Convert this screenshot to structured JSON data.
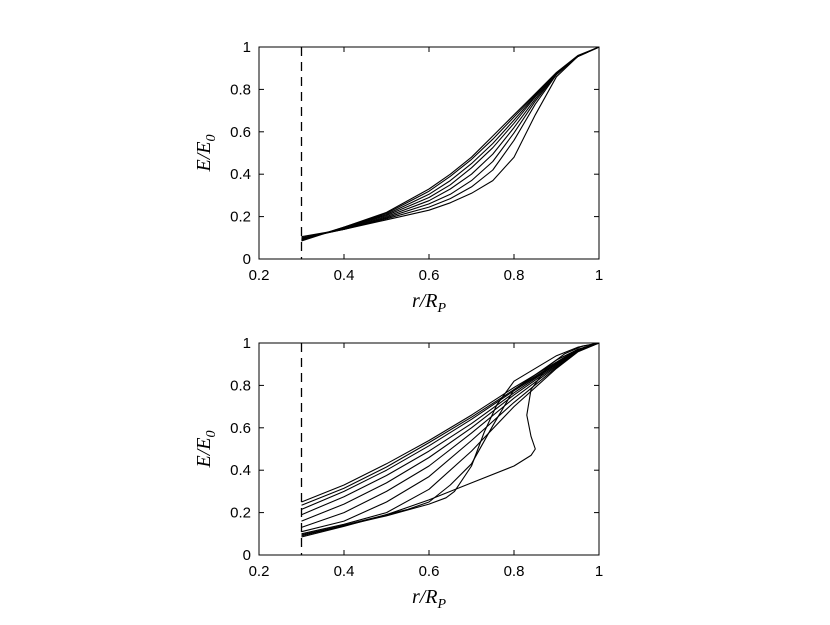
{
  "chart_data": [
    {
      "type": "line",
      "xlabel": {
        "main": "r/R",
        "sub": "P"
      },
      "ylabel": {
        "main": "E/E",
        "sub": "0"
      },
      "xlim": [
        0.2,
        1.0
      ],
      "ylim": [
        0,
        1
      ],
      "xticks": [
        "0.2",
        "0.4",
        "0.6",
        "0.8",
        "1"
      ],
      "yticks": [
        "0",
        "0.2",
        "0.4",
        "0.6",
        "0.8",
        "1"
      ],
      "reference_line": {
        "x": 0.3,
        "style": "dashed"
      },
      "grid": false,
      "line_color": "#000000",
      "series": [
        {
          "points": [
            [
              0.3,
              0.085
            ],
            [
              0.4,
              0.15
            ],
            [
              0.5,
              0.22
            ],
            [
              0.6,
              0.33
            ],
            [
              0.65,
              0.4
            ],
            [
              0.7,
              0.48
            ],
            [
              0.75,
              0.58
            ],
            [
              0.8,
              0.68
            ],
            [
              0.85,
              0.78
            ],
            [
              0.9,
              0.88
            ],
            [
              0.95,
              0.96
            ],
            [
              1.0,
              1.0
            ]
          ]
        },
        {
          "points": [
            [
              0.3,
              0.088
            ],
            [
              0.4,
              0.15
            ],
            [
              0.5,
              0.215
            ],
            [
              0.6,
              0.32
            ],
            [
              0.65,
              0.39
            ],
            [
              0.7,
              0.47
            ],
            [
              0.75,
              0.565
            ],
            [
              0.8,
              0.67
            ],
            [
              0.85,
              0.775
            ],
            [
              0.9,
              0.875
            ],
            [
              0.95,
              0.955
            ],
            [
              1.0,
              1.0
            ]
          ]
        },
        {
          "points": [
            [
              0.3,
              0.09
            ],
            [
              0.4,
              0.148
            ],
            [
              0.5,
              0.21
            ],
            [
              0.6,
              0.305
            ],
            [
              0.65,
              0.37
            ],
            [
              0.7,
              0.45
            ],
            [
              0.75,
              0.545
            ],
            [
              0.8,
              0.655
            ],
            [
              0.85,
              0.77
            ],
            [
              0.9,
              0.875
            ],
            [
              0.95,
              0.955
            ],
            [
              1.0,
              1.0
            ]
          ]
        },
        {
          "points": [
            [
              0.3,
              0.092
            ],
            [
              0.4,
              0.145
            ],
            [
              0.5,
              0.205
            ],
            [
              0.6,
              0.29
            ],
            [
              0.65,
              0.35
            ],
            [
              0.7,
              0.43
            ],
            [
              0.75,
              0.525
            ],
            [
              0.8,
              0.64
            ],
            [
              0.85,
              0.765
            ],
            [
              0.9,
              0.875
            ],
            [
              0.95,
              0.955
            ],
            [
              1.0,
              1.0
            ]
          ]
        },
        {
          "points": [
            [
              0.3,
              0.095
            ],
            [
              0.4,
              0.142
            ],
            [
              0.5,
              0.2
            ],
            [
              0.6,
              0.275
            ],
            [
              0.65,
              0.33
            ],
            [
              0.7,
              0.4
            ],
            [
              0.75,
              0.495
            ],
            [
              0.8,
              0.62
            ],
            [
              0.85,
              0.755
            ],
            [
              0.9,
              0.875
            ],
            [
              0.95,
              0.955
            ],
            [
              1.0,
              1.0
            ]
          ]
        },
        {
          "points": [
            [
              0.3,
              0.097
            ],
            [
              0.4,
              0.14
            ],
            [
              0.5,
              0.195
            ],
            [
              0.6,
              0.26
            ],
            [
              0.65,
              0.305
            ],
            [
              0.7,
              0.37
            ],
            [
              0.75,
              0.46
            ],
            [
              0.8,
              0.595
            ],
            [
              0.85,
              0.745
            ],
            [
              0.9,
              0.872
            ],
            [
              0.95,
              0.955
            ],
            [
              1.0,
              1.0
            ]
          ]
        },
        {
          "points": [
            [
              0.3,
              0.1
            ],
            [
              0.4,
              0.14
            ],
            [
              0.5,
              0.19
            ],
            [
              0.6,
              0.245
            ],
            [
              0.65,
              0.285
            ],
            [
              0.7,
              0.34
            ],
            [
              0.75,
              0.42
            ],
            [
              0.8,
              0.56
            ],
            [
              0.85,
              0.73
            ],
            [
              0.9,
              0.87
            ],
            [
              0.95,
              0.955
            ],
            [
              1.0,
              1.0
            ]
          ]
        },
        {
          "points": [
            [
              0.3,
              0.105
            ],
            [
              0.4,
              0.14
            ],
            [
              0.5,
              0.185
            ],
            [
              0.6,
              0.23
            ],
            [
              0.65,
              0.265
            ],
            [
              0.7,
              0.31
            ],
            [
              0.75,
              0.37
            ],
            [
              0.8,
              0.48
            ],
            [
              0.85,
              0.68
            ],
            [
              0.9,
              0.86
            ],
            [
              0.95,
              0.955
            ],
            [
              1.0,
              1.0
            ]
          ]
        }
      ]
    },
    {
      "type": "line",
      "xlabel": {
        "main": "r/R",
        "sub": "P"
      },
      "ylabel": {
        "main": "E/E",
        "sub": "0"
      },
      "xlim": [
        0.2,
        1.0
      ],
      "ylim": [
        0,
        1
      ],
      "xticks": [
        "0.2",
        "0.4",
        "0.6",
        "0.8",
        "1"
      ],
      "yticks": [
        "0",
        "0.2",
        "0.4",
        "0.6",
        "0.8",
        "1"
      ],
      "reference_line": {
        "x": 0.3,
        "style": "dashed"
      },
      "grid": false,
      "line_color": "#000000",
      "series": [
        {
          "points": [
            [
              0.3,
              0.25
            ],
            [
              0.4,
              0.33
            ],
            [
              0.5,
              0.43
            ],
            [
              0.6,
              0.54
            ],
            [
              0.7,
              0.66
            ],
            [
              0.8,
              0.79
            ],
            [
              0.9,
              0.91
            ],
            [
              0.95,
              0.97
            ],
            [
              1.0,
              1.0
            ]
          ]
        },
        {
          "points": [
            [
              0.3,
              0.235
            ],
            [
              0.4,
              0.315
            ],
            [
              0.5,
              0.415
            ],
            [
              0.6,
              0.53
            ],
            [
              0.7,
              0.65
            ],
            [
              0.8,
              0.78
            ],
            [
              0.9,
              0.905
            ],
            [
              0.95,
              0.965
            ],
            [
              1.0,
              1.0
            ]
          ]
        },
        {
          "points": [
            [
              0.3,
              0.215
            ],
            [
              0.4,
              0.3
            ],
            [
              0.5,
              0.4
            ],
            [
              0.6,
              0.515
            ],
            [
              0.7,
              0.64
            ],
            [
              0.8,
              0.775
            ],
            [
              0.9,
              0.9
            ],
            [
              0.95,
              0.965
            ],
            [
              1.0,
              1.0
            ]
          ]
        },
        {
          "points": [
            [
              0.3,
              0.19
            ],
            [
              0.4,
              0.275
            ],
            [
              0.5,
              0.375
            ],
            [
              0.6,
              0.49
            ],
            [
              0.7,
              0.62
            ],
            [
              0.8,
              0.765
            ],
            [
              0.9,
              0.9
            ],
            [
              0.95,
              0.965
            ],
            [
              1.0,
              1.0
            ]
          ]
        },
        {
          "points": [
            [
              0.3,
              0.16
            ],
            [
              0.4,
              0.24
            ],
            [
              0.5,
              0.34
            ],
            [
              0.6,
              0.46
            ],
            [
              0.7,
              0.6
            ],
            [
              0.8,
              0.755
            ],
            [
              0.9,
              0.895
            ],
            [
              0.95,
              0.965
            ],
            [
              1.0,
              1.0
            ]
          ]
        },
        {
          "points": [
            [
              0.3,
              0.13
            ],
            [
              0.4,
              0.2
            ],
            [
              0.5,
              0.3
            ],
            [
              0.6,
              0.42
            ],
            [
              0.7,
              0.575
            ],
            [
              0.8,
              0.74
            ],
            [
              0.9,
              0.89
            ],
            [
              0.95,
              0.962
            ],
            [
              1.0,
              1.0
            ]
          ]
        },
        {
          "points": [
            [
              0.3,
              0.11
            ],
            [
              0.4,
              0.16
            ],
            [
              0.5,
              0.25
            ],
            [
              0.6,
              0.37
            ],
            [
              0.7,
              0.54
            ],
            [
              0.8,
              0.72
            ],
            [
              0.9,
              0.885
            ],
            [
              0.95,
              0.96
            ],
            [
              1.0,
              1.0
            ]
          ]
        },
        {
          "points": [
            [
              0.3,
              0.1
            ],
            [
              0.4,
              0.145
            ],
            [
              0.5,
              0.2
            ],
            [
              0.6,
              0.31
            ],
            [
              0.7,
              0.49
            ],
            [
              0.8,
              0.7
            ],
            [
              0.9,
              0.88
            ],
            [
              0.95,
              0.958
            ],
            [
              1.0,
              1.0
            ]
          ]
        },
        {
          "points": [
            [
              0.3,
              0.095
            ],
            [
              0.4,
              0.14
            ],
            [
              0.5,
              0.19
            ],
            [
              0.55,
              0.215
            ],
            [
              0.6,
              0.25
            ],
            [
              0.65,
              0.33
            ],
            [
              0.7,
              0.43
            ],
            [
              0.75,
              0.61
            ],
            [
              0.8,
              0.78
            ],
            [
              0.9,
              0.92
            ],
            [
              0.95,
              0.97
            ],
            [
              1.0,
              1.0
            ]
          ]
        },
        {
          "points": [
            [
              0.3,
              0.09
            ],
            [
              0.4,
              0.138
            ],
            [
              0.5,
              0.185
            ],
            [
              0.6,
              0.24
            ],
            [
              0.64,
              0.27
            ],
            [
              0.66,
              0.3
            ],
            [
              0.7,
              0.42
            ],
            [
              0.73,
              0.58
            ],
            [
              0.76,
              0.71
            ],
            [
              0.8,
              0.82
            ],
            [
              0.9,
              0.94
            ],
            [
              0.95,
              0.98
            ],
            [
              1.0,
              1.0
            ]
          ]
        },
        {
          "points": [
            [
              0.3,
              0.085
            ],
            [
              0.4,
              0.135
            ],
            [
              0.5,
              0.19
            ],
            [
              0.6,
              0.26
            ],
            [
              0.7,
              0.34
            ],
            [
              0.8,
              0.42
            ],
            [
              0.84,
              0.47
            ],
            [
              0.85,
              0.5
            ],
            [
              0.84,
              0.56
            ],
            [
              0.83,
              0.66
            ],
            [
              0.84,
              0.78
            ],
            [
              0.88,
              0.89
            ],
            [
              0.92,
              0.95
            ],
            [
              0.96,
              0.985
            ],
            [
              1.0,
              1.0
            ]
          ]
        }
      ]
    }
  ]
}
